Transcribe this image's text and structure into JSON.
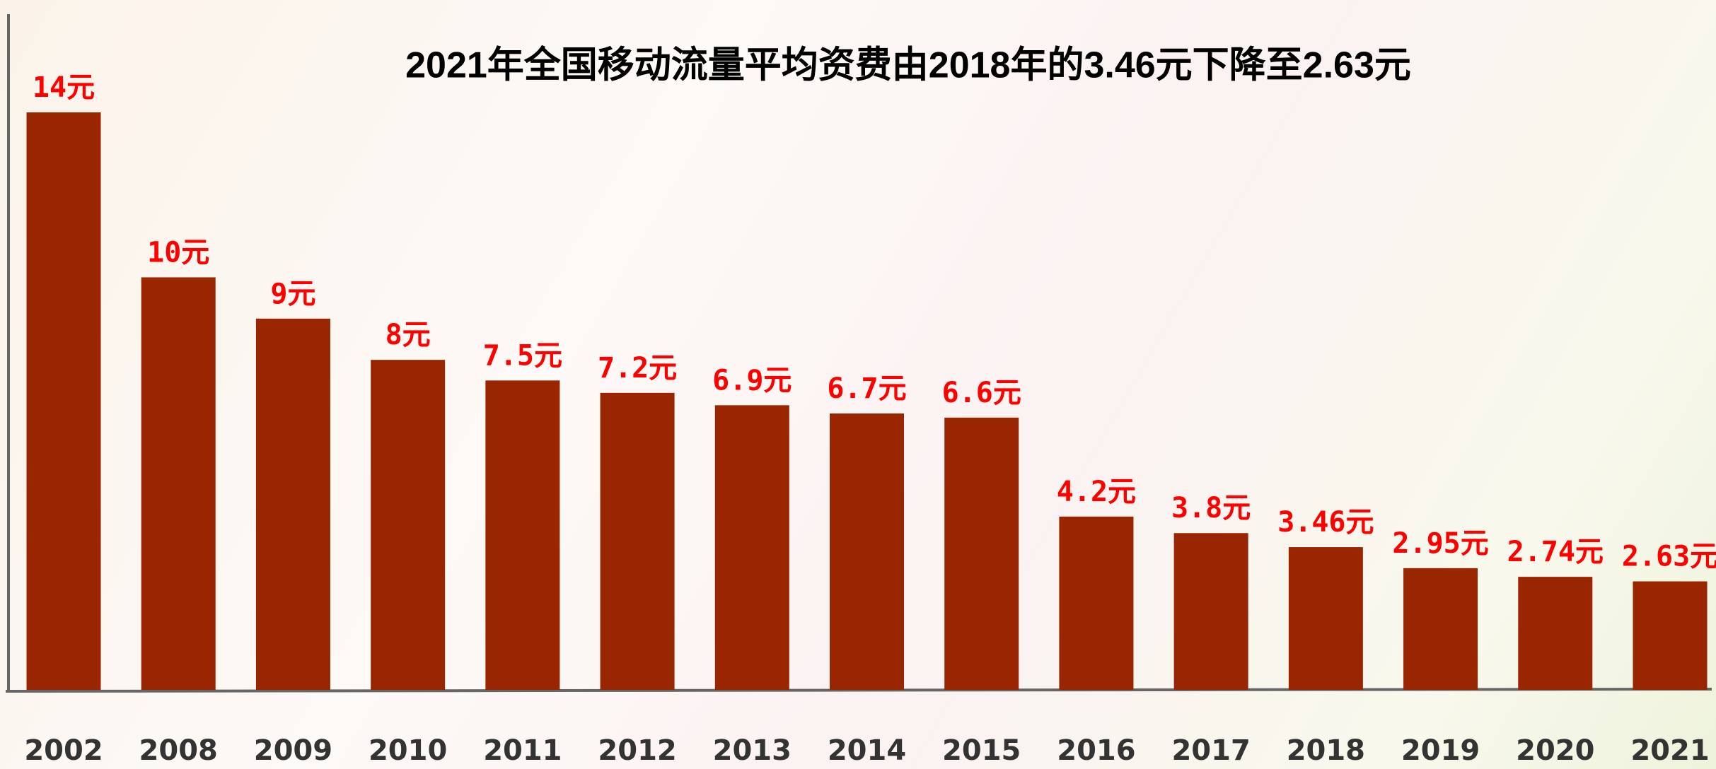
{
  "chart_data": {
    "type": "bar",
    "title": "2021年全国移动流量平均资费由2018年的3.46元下降至2.63元",
    "categories": [
      "2002",
      "2008",
      "2009",
      "2010",
      "2011",
      "2012",
      "2013",
      "2014",
      "2015",
      "2016",
      "2017",
      "2018",
      "2019",
      "2020",
      "2021"
    ],
    "values": [
      14,
      10,
      9,
      8,
      7.5,
      7.2,
      6.9,
      6.7,
      6.6,
      4.2,
      3.8,
      3.46,
      2.95,
      2.74,
      2.63
    ],
    "value_labels": [
      "14元",
      "10元",
      "9元",
      "8元",
      "7.5元",
      "7.2元",
      "6.9元",
      "6.7元",
      "6.6元",
      "4.2元",
      "3.8元",
      "3.46元",
      "2.95元",
      "2.74元",
      "2.63元"
    ],
    "color": "#992600",
    "label_color": "#ff0000"
  }
}
